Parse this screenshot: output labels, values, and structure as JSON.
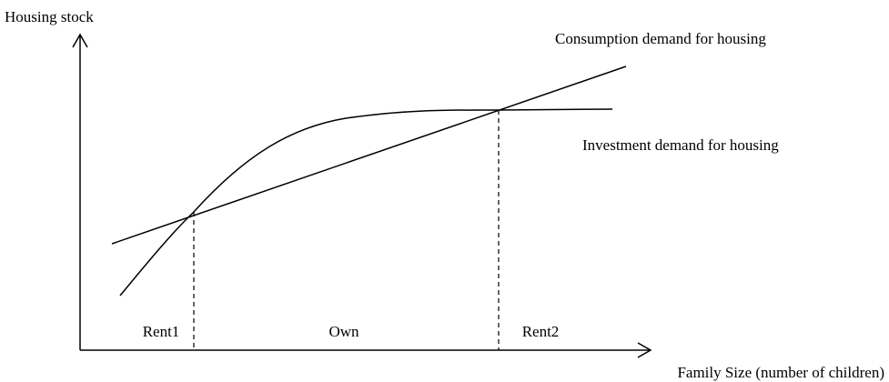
{
  "axes": {
    "y_label": "Housing stock",
    "x_label": "Family Size (number of children)"
  },
  "curves": {
    "consumption": "Consumption demand for housing",
    "investment": "Investment demand for housing"
  },
  "regions": [
    "Rent1",
    "Own",
    "Rent2"
  ]
}
